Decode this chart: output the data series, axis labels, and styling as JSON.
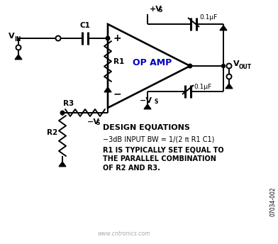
{
  "bg_color": "#ffffff",
  "line_color": "#000000",
  "blue_color": "#0000bb",
  "watermark_color": "#aaaaaa",
  "design_eq_title": "DESIGN EQUATIONS",
  "design_eq_line1": "−3dB INPUT BW = 1/(2 π R1 C1)",
  "design_eq_line2": "R1 IS TYPICALLY SET EQUAL TO",
  "design_eq_line3": "THE PARALLEL COMBINATION",
  "design_eq_line4": "OF R2 AND R3.",
  "watermark": "www.cntronics.com",
  "code": "07034-002",
  "figsize": [
    3.92,
    3.44
  ],
  "dpi": 100
}
